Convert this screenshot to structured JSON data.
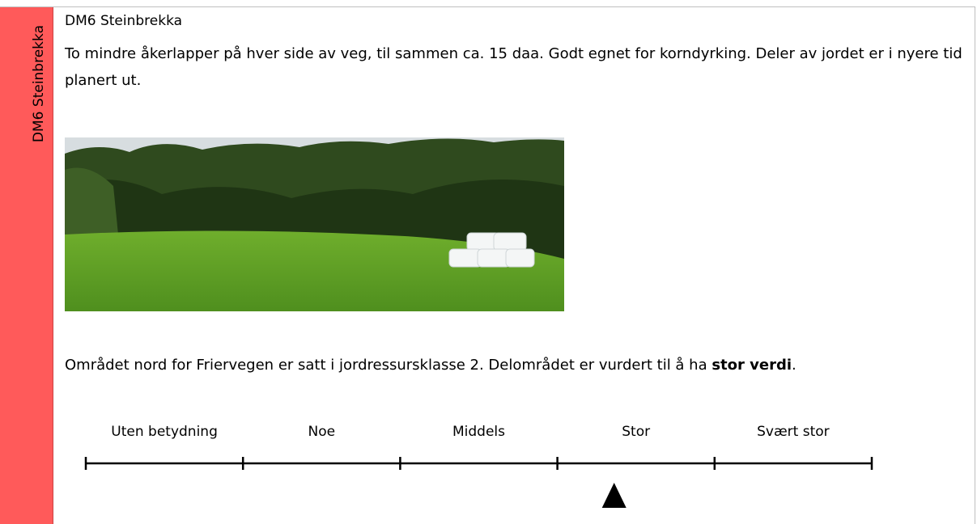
{
  "sidebar": "DM6 Steinbrekka",
  "title": "DM6 Steinbrekka",
  "paragraph1": "To mindre åkerlapper på hver side av veg, til sammen ca. 15 daa. Godt egnet for korndyrking. Deler av jordet er i nyere tid planert ut.",
  "paragraph2": {
    "parts": [
      "Området nord for Friervegen er satt i jordressursklasse 2. Delområdet er vurdert til å ha ",
      "stor verdi",
      "."
    ]
  },
  "scale": {
    "categories": [
      "Uten betydning",
      "Noe",
      "Middels",
      "Stor",
      "Svært stor"
    ],
    "selected": "Stor"
  }
}
